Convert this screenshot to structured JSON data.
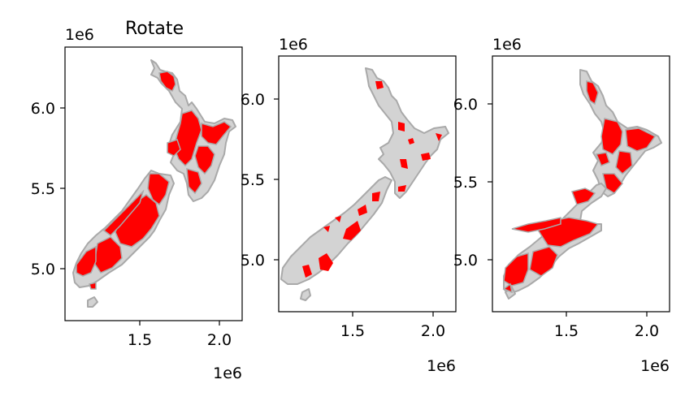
{
  "chart_data": [
    {
      "type": "map",
      "title": "Rotate",
      "x_ticks": [
        "1.5",
        "2.0"
      ],
      "y_ticks": [
        "5.0",
        "5.5",
        "6.0"
      ],
      "x_offset": "1e6",
      "y_offset": "1e6",
      "xlim": [
        1.04,
        2.14
      ],
      "ylim": [
        4.69,
        6.38
      ],
      "base_color": "#d3d3d3",
      "edge_color": "#a9a9a9",
      "highlight_color": "#ff0000",
      "highlight": "scaled regions"
    },
    {
      "type": "map",
      "title": "",
      "x_ticks": [
        "1.5",
        "2.0"
      ],
      "y_ticks": [
        "5.0",
        "5.5",
        "6.0"
      ],
      "x_offset": "1e6",
      "y_offset": "1e6",
      "xlim": [
        1.04,
        2.14
      ],
      "ylim": [
        4.69,
        6.3
      ],
      "base_color": "#d3d3d3",
      "edge_color": "#a9a9a9",
      "highlight_color": "#ff0000",
      "highlight": "small islands"
    },
    {
      "type": "map",
      "title": "",
      "x_ticks": [
        "1.5",
        "2.0"
      ],
      "y_ticks": [
        "5.0",
        "5.5",
        "6.0"
      ],
      "x_offset": "1e6",
      "y_offset": "1e6",
      "xlim": [
        1.04,
        2.14
      ],
      "ylim": [
        4.69,
        6.33
      ],
      "base_color": "#d3d3d3",
      "edge_color": "#a9a9a9",
      "highlight_color": "#ff0000",
      "highlight": "rotated regions"
    }
  ]
}
